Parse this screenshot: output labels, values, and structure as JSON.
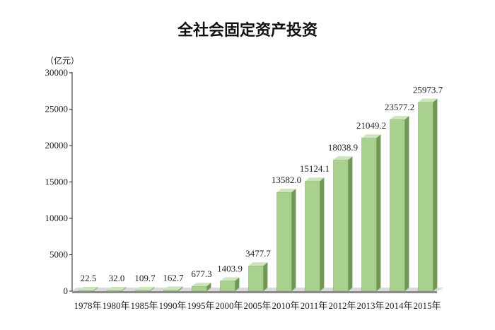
{
  "chart_data": {
    "type": "bar",
    "title": "全社会固定资产投资",
    "unit_label": "（亿元）",
    "categories": [
      "1978年",
      "1980年",
      "1985年",
      "1990年",
      "1995年",
      "2000年",
      "2005年",
      "2010年",
      "2011年",
      "2012年",
      "2013年",
      "2014年",
      "2015年"
    ],
    "values": [
      22.5,
      32.0,
      109.7,
      162.7,
      677.3,
      1403.9,
      3477.7,
      13582.0,
      15124.1,
      18038.9,
      21049.2,
      23577.2,
      25973.7
    ],
    "value_labels": [
      "22.5",
      "32.0",
      "109.7",
      "162.7",
      "677.3",
      "1403.9",
      "3477.7",
      "13582.0",
      "15124.1",
      "18038.9",
      "21049.2",
      "23577.2",
      "25973.7"
    ],
    "y_ticks": [
      "0",
      "5000",
      "10000",
      "15000",
      "20000",
      "25000",
      "30000"
    ],
    "ylim": [
      0,
      30000
    ],
    "xlabel": "",
    "ylabel": "",
    "grid": false,
    "colors": {
      "bar_front": "#a9d18e",
      "bar_side": "#6e9a52",
      "bar_top": "#cde4bc",
      "floor": "#8c8c8c"
    }
  }
}
